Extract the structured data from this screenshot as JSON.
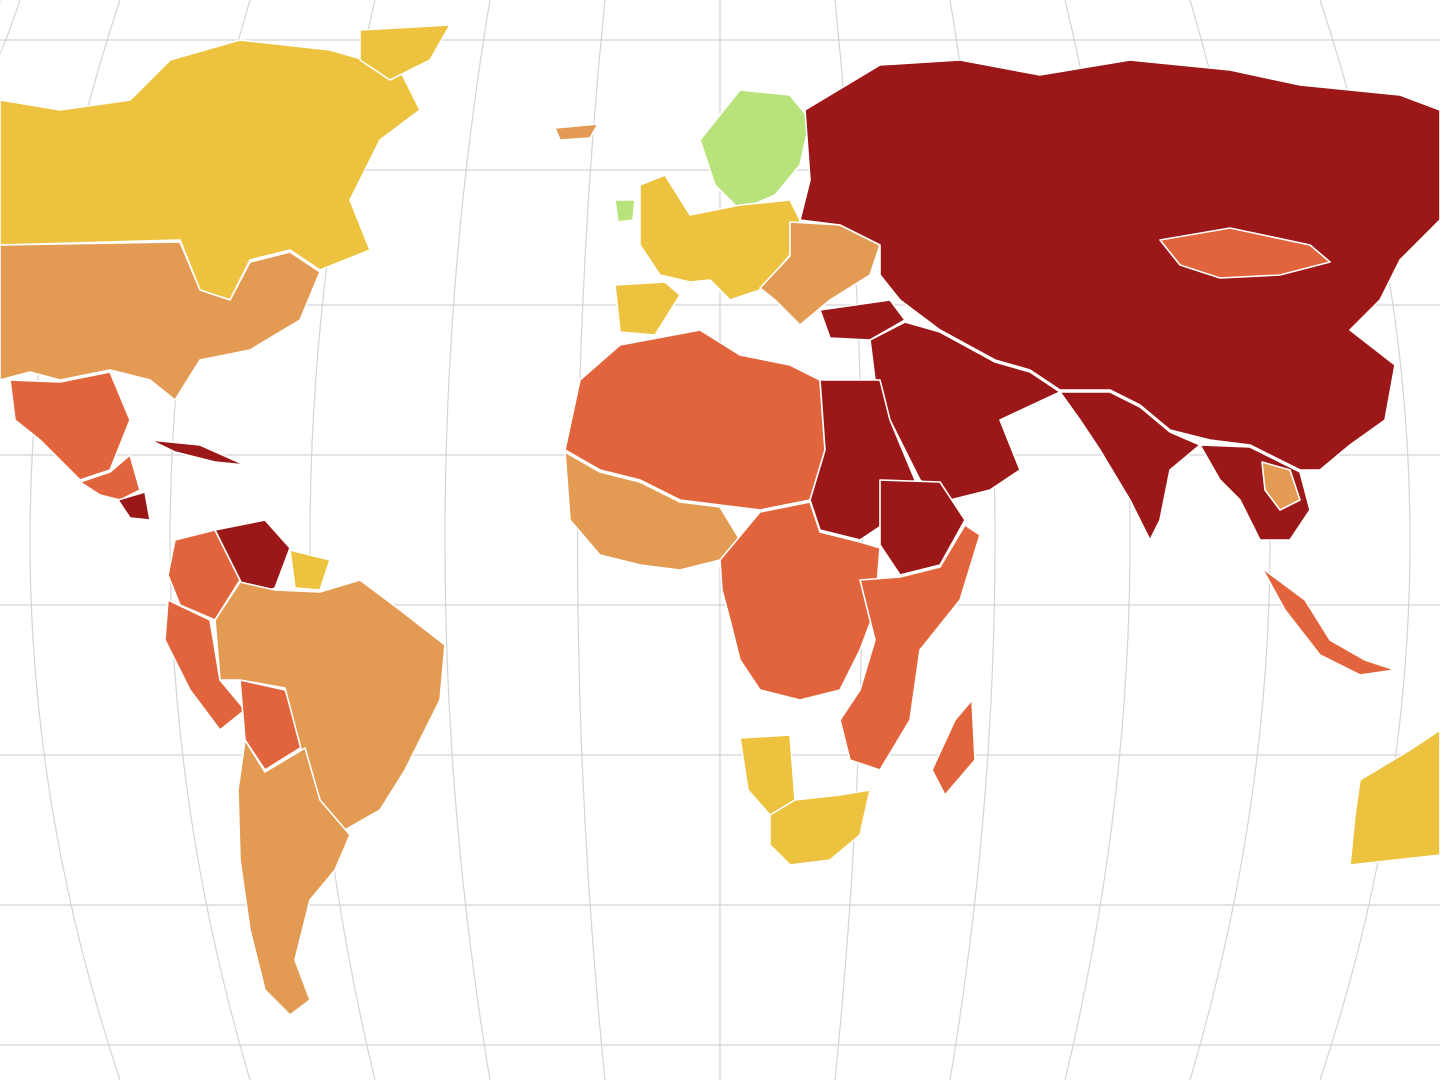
{
  "map": {
    "palette": {
      "good": "#b8e27a",
      "satisfactory": "#ecc23f",
      "problematic": "#e39b53",
      "difficult": "#e2643c",
      "very_serious": "#9c1717"
    },
    "regions": [
      {
        "name": "north-america-north",
        "category": "satisfactory"
      },
      {
        "name": "greenland",
        "category": "satisfactory"
      },
      {
        "name": "usa",
        "category": "problematic"
      },
      {
        "name": "mexico",
        "category": "difficult"
      },
      {
        "name": "central-america",
        "category": "difficult"
      },
      {
        "name": "cuba",
        "category": "very_serious"
      },
      {
        "name": "nicaragua",
        "category": "very_serious"
      },
      {
        "name": "venezuela",
        "category": "very_serious"
      },
      {
        "name": "colombia",
        "category": "difficult"
      },
      {
        "name": "peru",
        "category": "difficult"
      },
      {
        "name": "bolivia",
        "category": "difficult"
      },
      {
        "name": "brazil",
        "category": "problematic"
      },
      {
        "name": "argentina-chile",
        "category": "problematic"
      },
      {
        "name": "guianas",
        "category": "satisfactory"
      },
      {
        "name": "iceland",
        "category": "problematic"
      },
      {
        "name": "scandinavia",
        "category": "good"
      },
      {
        "name": "ireland",
        "category": "good"
      },
      {
        "name": "western-europe",
        "category": "satisfactory"
      },
      {
        "name": "iberia",
        "category": "satisfactory"
      },
      {
        "name": "eastern-europe",
        "category": "problematic"
      },
      {
        "name": "russia-asia",
        "category": "very_serious"
      },
      {
        "name": "mongolia",
        "category": "difficult"
      },
      {
        "name": "turkey",
        "category": "very_serious"
      },
      {
        "name": "middle-east",
        "category": "very_serious"
      },
      {
        "name": "india",
        "category": "very_serious"
      },
      {
        "name": "southeast-asia",
        "category": "very_serious"
      },
      {
        "name": "thailand",
        "category": "problematic"
      },
      {
        "name": "north-africa",
        "category": "difficult"
      },
      {
        "name": "egypt-sudan",
        "category": "very_serious"
      },
      {
        "name": "ethiopia",
        "category": "very_serious"
      },
      {
        "name": "west-africa",
        "category": "problematic"
      },
      {
        "name": "central-africa",
        "category": "difficult"
      },
      {
        "name": "east-africa",
        "category": "difficult"
      },
      {
        "name": "namibia",
        "category": "satisfactory"
      },
      {
        "name": "south-africa",
        "category": "satisfactory"
      },
      {
        "name": "madagascar",
        "category": "difficult"
      },
      {
        "name": "indonesia",
        "category": "difficult"
      },
      {
        "name": "australia",
        "category": "satisfactory"
      }
    ]
  }
}
